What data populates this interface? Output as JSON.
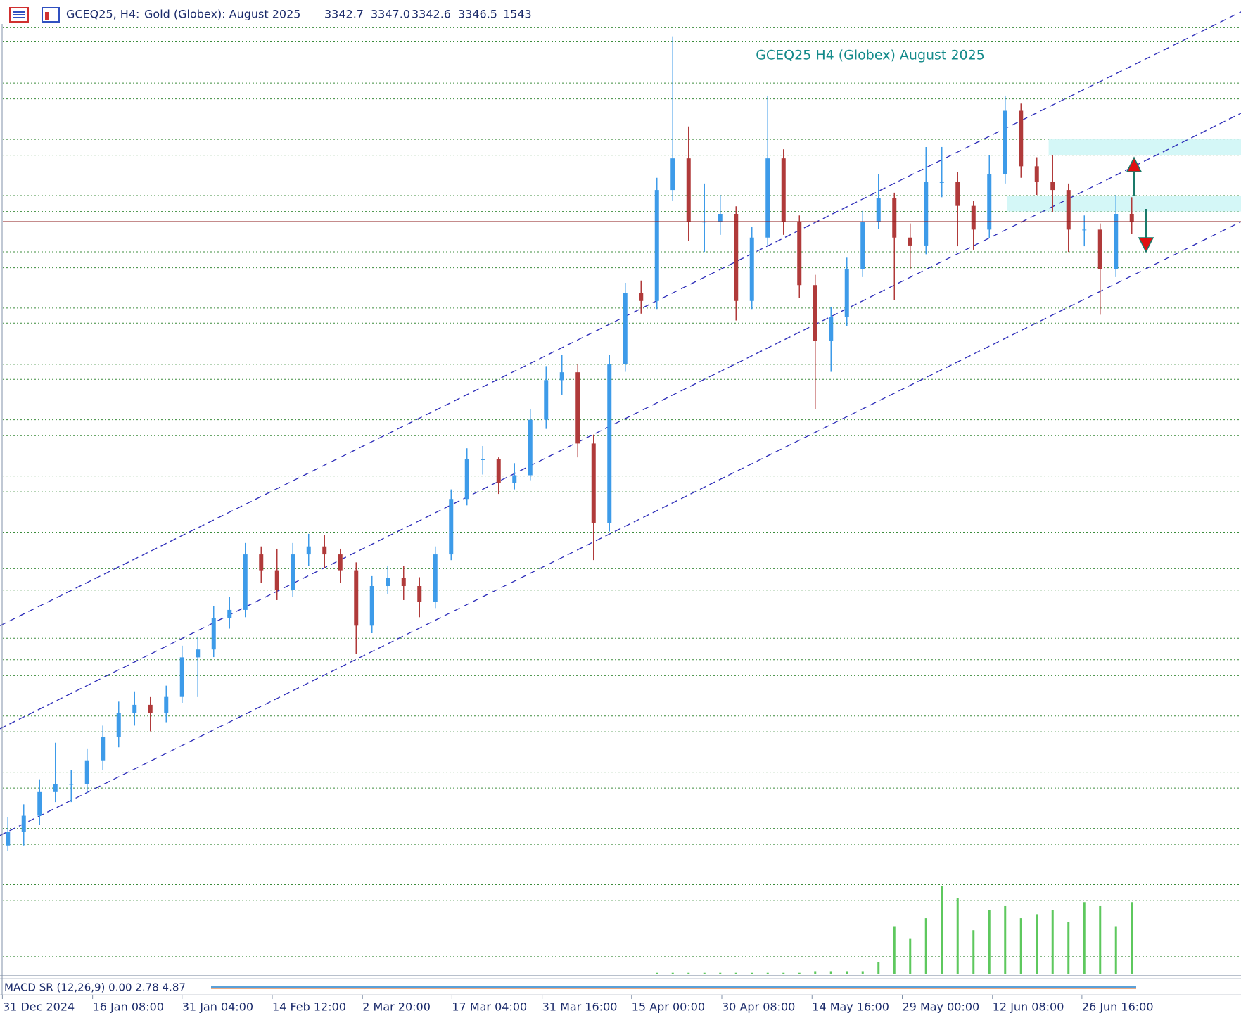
{
  "chart_data": {
    "type": "candlestick",
    "header": {
      "symbol": "GCEQ25, H4:",
      "description": "Gold (Globex): August 2025",
      "open": 3342.7,
      "high": {
        "value": 3347,
        "label": "3347.0"
      },
      "low": 3342.6,
      "close": 3346.5,
      "volume": 1543
    },
    "annotation": "GCEQ25 H4 (Globex) August 2025",
    "macd_label": "MACD SR (12,26,9) 0.00 2.78 4.87",
    "xlim": [
      -0.5,
      77.9
    ],
    "ylim": [
      2685.8,
      3540.8
    ],
    "xticks": [
      {
        "value": -0.35,
        "label": "31 Dec 2024"
      },
      {
        "value": 5.35,
        "label": "16 Jan 08:00"
      },
      {
        "value": 11,
        "label": "31 Jan 04:00"
      },
      {
        "value": 16.7,
        "label": "14 Feb 12:00"
      },
      {
        "value": 22.4,
        "label": "2 Mar 20:00"
      },
      {
        "value": 28.05,
        "label": "17 Mar 04:00"
      },
      {
        "value": 33.75,
        "label": "31 Mar 16:00"
      },
      {
        "value": 39.4,
        "label": "15 Apr 00:00"
      },
      {
        "value": 45.1,
        "label": "30 Apr 08:00"
      },
      {
        "value": 50.8,
        "label": "14 May 16:00"
      },
      {
        "value": 56.5,
        "label": "29 May 00:00"
      },
      {
        "value": 62.2,
        "label": "12 Jun 08:00"
      },
      {
        "value": 67.85,
        "label": "26 Jun 16:00"
      }
    ],
    "up_color": "#3d9be9",
    "down_color": "#b03a3a",
    "open": [
      2800,
      2812.1,
      2826.0,
      2846.8,
      2853.8,
      2853.8,
      2874.6,
      2895.4,
      2916.2,
      2923.2,
      2916.2,
      2930.1,
      2964.8,
      2971.7,
      2999.5,
      3006.4,
      3055.0,
      3041.1,
      3023.8,
      3055.0,
      3062.0,
      3055.0,
      3041.1,
      2992.6,
      3027.3,
      3034.2,
      3027.3,
      3013.4,
      3055.0,
      3103.6,
      3138.3,
      3138.3,
      3117.5,
      3124.4,
      3173.0,
      3207.7,
      3214.6,
      3152.2,
      3082.8,
      3221.6,
      3284.0,
      3277.1,
      3374.3,
      3402.0,
      3346.5,
      3346.5,
      3353.4,
      3277.1,
      3332.6,
      3402.0,
      3346.5,
      3291.0,
      3242.4,
      3263.2,
      3304.9,
      3346.5,
      3367.3,
      3332.6,
      3325.7,
      3381.2,
      3381.2,
      3360.4,
      3339.6,
      3388.1,
      3443.7,
      3395.1,
      3381.2,
      3374.3,
      3339.6,
      3339.6,
      3304.9,
      3353.4
    ],
    "high": [
      2825,
      2836,
      2858,
      2890,
      2866,
      2885,
      2905,
      2926,
      2935,
      2930,
      2940,
      2975,
      2983,
      3010,
      3018,
      3065,
      3062,
      3060,
      3065,
      3073,
      3072,
      3060,
      3048,
      3036,
      3045,
      3045,
      3035,
      3062,
      3112,
      3148,
      3150,
      3140,
      3135,
      3182,
      3220,
      3230,
      3222,
      3160,
      3230,
      3293,
      3295,
      3385,
      3509,
      3430,
      3380,
      3370,
      3360,
      3342,
      3457,
      3410,
      3352,
      3300,
      3272,
      3315,
      3356,
      3388,
      3372,
      3345,
      3412,
      3412,
      3390,
      3365,
      3405,
      3457,
      3450,
      3403,
      3405,
      3380,
      3352,
      3345,
      3370,
      3368
    ],
    "low": [
      2795,
      2800,
      2818,
      2838,
      2838,
      2846,
      2866,
      2886,
      2905,
      2900,
      2908,
      2925,
      2930,
      2965,
      2990,
      3000,
      3030,
      3015,
      3018,
      3045,
      3043,
      3030,
      2968,
      2986,
      3020,
      3015,
      3000,
      3008,
      3050,
      3098,
      3125,
      3108,
      3112,
      3120,
      3165,
      3195,
      3140,
      3050,
      3075,
      3215,
      3266,
      3270,
      3365,
      3330,
      3320,
      3335,
      3260,
      3270,
      3325,
      3335,
      3280,
      3182,
      3215,
      3255,
      3298,
      3340,
      3278,
      3305,
      3318,
      3368,
      3325,
      3322,
      3332,
      3380,
      3385,
      3370,
      3355,
      3320,
      3325,
      3265,
      3298,
      3336
    ],
    "close": [
      2812.1,
      2826.0,
      2846.8,
      2853.8,
      2853.8,
      2874.6,
      2895.4,
      2916.2,
      2923.2,
      2916.2,
      2930.1,
      2964.8,
      2971.7,
      2999.5,
      3006.4,
      3055.0,
      3041.1,
      3023.8,
      3055.0,
      3062.0,
      3055.0,
      3041.1,
      2992.6,
      3027.3,
      3034.2,
      3027.3,
      3013.4,
      3055.0,
      3103.6,
      3138.3,
      3138.3,
      3117.5,
      3124.4,
      3173.0,
      3207.7,
      3214.6,
      3152.2,
      3082.8,
      3221.6,
      3284.0,
      3277.1,
      3374.3,
      3402.0,
      3346.5,
      3346.5,
      3353.4,
      3277.1,
      3332.6,
      3402.0,
      3346.5,
      3291.0,
      3242.4,
      3263.2,
      3304.9,
      3346.5,
      3367.3,
      3332.6,
      3325.7,
      3381.2,
      3381.2,
      3360.4,
      3339.6,
      3388.1,
      3443.7,
      3395.1,
      3381.2,
      3374.3,
      3339.6,
      3339.6,
      3304.9,
      3353.4,
      3346.5
    ],
    "volume": [
      500,
      500,
      500,
      500,
      500,
      500,
      500,
      500,
      500,
      500,
      500,
      500,
      500,
      500,
      500,
      500,
      500,
      500,
      500,
      500,
      500,
      500,
      500,
      500,
      500,
      500,
      500,
      500,
      500,
      500,
      500,
      500,
      500,
      500,
      500,
      500,
      500,
      500,
      500,
      500,
      500,
      2000,
      2000,
      2000,
      2000,
      2000,
      2000,
      2000,
      2000,
      2000,
      2000,
      4000,
      4000,
      4000,
      4000,
      15000,
      60000,
      45000,
      70000,
      110000,
      95000,
      55000,
      80000,
      85000,
      70000,
      75000,
      80000,
      65000,
      90000,
      85000,
      60000,
      90000
    ],
    "vlim": [
      0,
      120000
    ],
    "volume_color": "#5ec85e",
    "levels": [
      3516.5,
      3504.7,
      3468.0,
      3454.1,
      3418.7,
      3404.8,
      3369.4,
      3355.5,
      3320.1,
      3306.2,
      3270.9,
      3257.7,
      3221.6,
      3208.4,
      3173.0,
      3159.1,
      3123.7,
      3109.8,
      3074.5,
      3042.5,
      3023.8,
      2981.5,
      2962.7,
      2948.8,
      2913.4,
      2899.6,
      2864.2,
      2850.3,
      2814.9,
      2801.0,
      2765.6,
      2751.7,
      2716.3,
      2702.5
    ],
    "level_color": "#3c8c3c",
    "channel": [
      {
        "x": [
          -0.5,
          77.9
        ],
        "y": [
          2992.6,
          3530.4
        ]
      },
      {
        "x": [
          -0.5,
          77.9
        ],
        "y": [
          2902.3,
          3441.6
        ]
      },
      {
        "x": [
          -0.5,
          77.9
        ],
        "y": [
          2808.7,
          3346.5
        ]
      }
    ],
    "channel_color": "#2a2ab8",
    "zones": [
      {
        "x0": 65.75,
        "y": [
          3404.8,
          3418.7
        ]
      },
      {
        "x0": 63.1,
        "y": [
          3355.5,
          3369.4
        ]
      }
    ],
    "zone_color": "#d4f7f7",
    "price_line_color": "#8b1a1a"
  }
}
